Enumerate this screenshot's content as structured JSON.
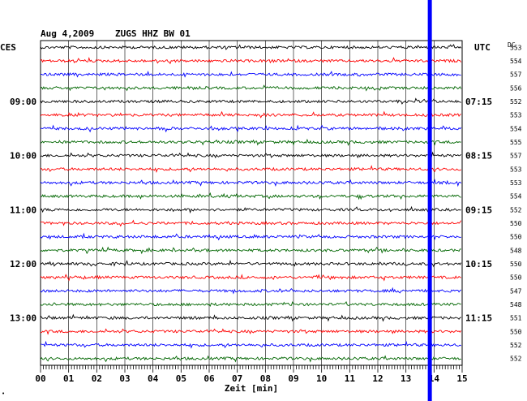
{
  "header": {
    "date": "Aug 4,2009",
    "station": "ZUGS HHZ BW 01",
    "left_tz": "CES",
    "right_tz": "UTC",
    "dc_label": "DC"
  },
  "chart_data": {
    "type": "line",
    "title": "Aug 4,2009   ZUGS HHZ BW 01",
    "xlabel": "Zeit [min]",
    "xlim": [
      0,
      15
    ],
    "x_ticks": [
      "00",
      "01",
      "02",
      "03",
      "04",
      "05",
      "06",
      "07",
      "08",
      "09",
      "10",
      "11",
      "12",
      "13",
      "14",
      "15"
    ],
    "grid": true,
    "left_time_labels": [
      {
        "row": 4,
        "label": "09:00"
      },
      {
        "row": 8,
        "label": "10:00"
      },
      {
        "row": 12,
        "label": "11:00"
      },
      {
        "row": 16,
        "label": "12:00"
      },
      {
        "row": 20,
        "label": "13:00"
      }
    ],
    "right_time_labels": [
      {
        "row": 4,
        "label": "07:15"
      },
      {
        "row": 8,
        "label": "08:15"
      },
      {
        "row": 12,
        "label": "09:15"
      },
      {
        "row": 16,
        "label": "10:15"
      },
      {
        "row": 20,
        "label": "11:15"
      }
    ],
    "dc_values": [
      "553",
      "554",
      "557",
      "556",
      "552",
      "553",
      "554",
      "555",
      "557",
      "553",
      "553",
      "554",
      "552",
      "550",
      "550",
      "548",
      "550",
      "550",
      "547",
      "548",
      "551",
      "550",
      "552",
      "552"
    ],
    "trace_colors": [
      "#000000",
      "#ff0000",
      "#0000ff",
      "#006600"
    ],
    "event_marker": {
      "minute": 13.85,
      "color": "#0000ff"
    }
  },
  "corner_mark": "•"
}
